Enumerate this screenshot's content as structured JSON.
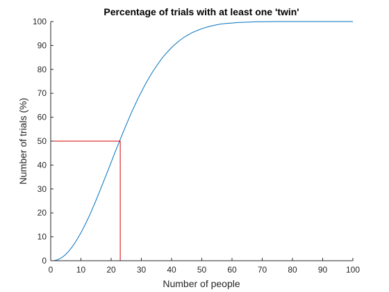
{
  "chart_data": {
    "type": "line",
    "title": "Percentage of trials with at least one 'twin'",
    "xlabel": "Number of people",
    "ylabel": "Number of trials (%)",
    "xlim": [
      0,
      100
    ],
    "ylim": [
      0,
      100
    ],
    "xticks": [
      0,
      10,
      20,
      30,
      40,
      50,
      60,
      70,
      80,
      90,
      100
    ],
    "yticks": [
      0,
      10,
      20,
      30,
      40,
      50,
      60,
      70,
      80,
      90,
      100
    ],
    "grid": false,
    "series": [
      {
        "color": "#0072BD",
        "x": [
          1,
          2,
          3,
          4,
          5,
          6,
          7,
          8,
          9,
          10,
          11,
          12,
          13,
          14,
          15,
          16,
          17,
          18,
          19,
          20,
          21,
          22,
          23,
          24,
          25,
          26,
          27,
          28,
          29,
          30,
          31,
          32,
          33,
          34,
          35,
          36,
          37,
          38,
          39,
          40,
          41,
          42,
          43,
          44,
          45,
          46,
          47,
          48,
          49,
          50,
          52,
          54,
          56,
          58,
          60,
          62,
          64,
          66,
          68,
          70,
          75,
          80,
          85,
          90,
          95,
          100
        ],
        "y": [
          0,
          0.3,
          0.8,
          1.6,
          2.7,
          4.0,
          5.6,
          7.4,
          9.5,
          11.7,
          14.1,
          16.7,
          19.4,
          22.3,
          25.3,
          28.4,
          31.5,
          34.7,
          37.9,
          41.1,
          44.4,
          47.6,
          50.7,
          53.8,
          56.9,
          59.8,
          62.7,
          65.4,
          68.1,
          70.6,
          73.0,
          75.3,
          77.5,
          79.5,
          81.4,
          83.2,
          84.9,
          86.4,
          87.8,
          89.1,
          90.3,
          91.4,
          92.4,
          93.3,
          94.1,
          94.8,
          95.5,
          96.0,
          96.5,
          97.0,
          97.8,
          98.4,
          98.9,
          99.2,
          99.4,
          99.6,
          99.7,
          99.8,
          99.9,
          99.9,
          100,
          100,
          100,
          100,
          100,
          100
        ]
      },
      {
        "color": "#D40000",
        "x": [
          0,
          23,
          23
        ],
        "y": [
          50,
          50,
          0
        ]
      }
    ]
  }
}
